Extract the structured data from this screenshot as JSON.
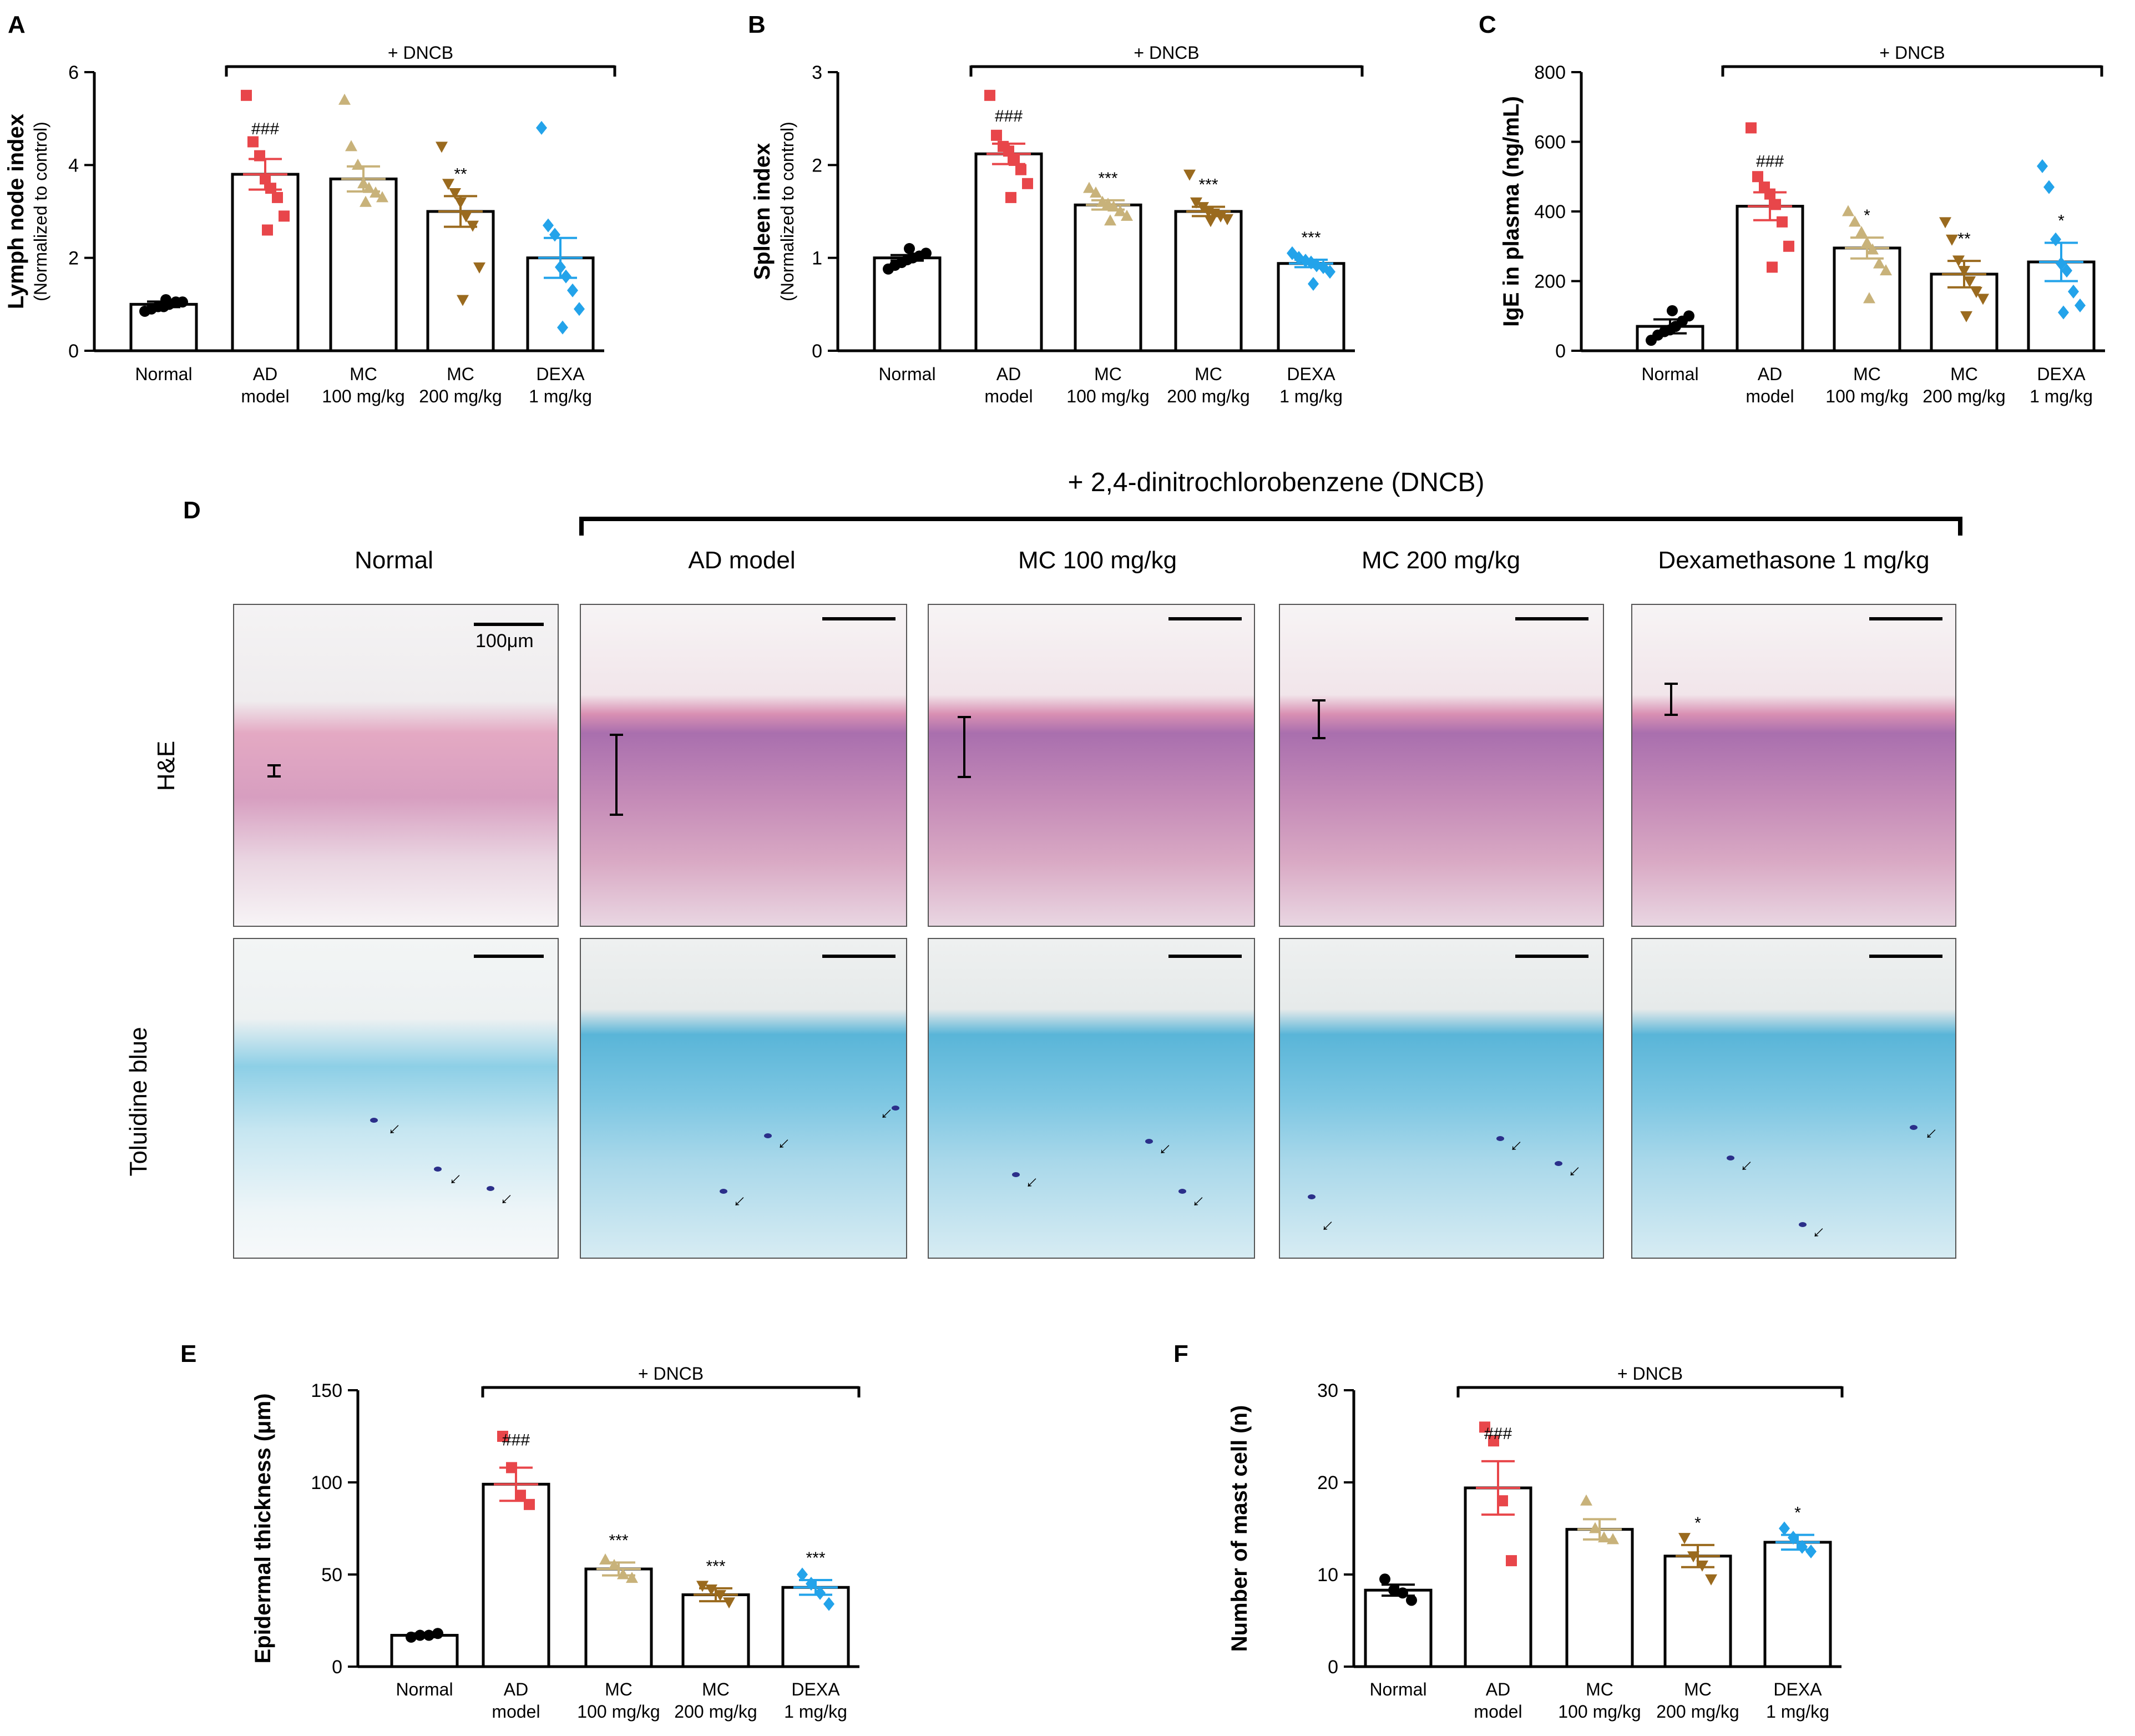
{
  "colors": {
    "normal": "#000000",
    "ad_model": "#e8464a",
    "mc100": "#c8b27a",
    "mc200": "#9a6a1e",
    "dexa": "#23a3ea"
  },
  "shared_categories": [
    "Normal",
    "AD model",
    "MC 100 mg/kg",
    "MC 200 mg/kg",
    "DEXA 1 mg/kg"
  ],
  "chart_data": [
    {
      "panel": "A",
      "type": "bar",
      "title": "",
      "ylabel": "Lymph node index",
      "ylabel_sub": "(Normalized to control)",
      "ylim": [
        0,
        6
      ],
      "yticks": [
        "0",
        "2",
        "4",
        "6"
      ],
      "bracket_label": "+ DNCB",
      "categories": [
        [
          "Normal"
        ],
        [
          "AD",
          "model"
        ],
        [
          "MC",
          "100 mg/kg"
        ],
        [
          "MC",
          "200 mg/kg"
        ],
        [
          "DEXA",
          "1 mg/kg"
        ]
      ],
      "means": [
        1.0,
        3.8,
        3.7,
        3.0,
        2.0
      ],
      "sem": [
        0.06,
        0.33,
        0.27,
        0.33,
        0.43
      ],
      "significance": [
        "",
        "###",
        "",
        "**",
        ""
      ],
      "points": [
        [
          0.85,
          0.9,
          0.95,
          0.95,
          1.0,
          1.05,
          1.05,
          1.1
        ],
        [
          5.5,
          4.5,
          4.2,
          3.7,
          3.5,
          3.3,
          2.9,
          2.6
        ],
        [
          5.4,
          4.4,
          4.0,
          3.6,
          3.5,
          3.4,
          3.3,
          3.2
        ],
        [
          4.4,
          3.6,
          3.4,
          3.2,
          2.9,
          2.7,
          1.8,
          1.1
        ],
        [
          4.8,
          2.7,
          2.5,
          1.8,
          1.6,
          1.3,
          0.9,
          0.5
        ]
      ]
    },
    {
      "panel": "B",
      "type": "bar",
      "title": "",
      "ylabel": "Spleen index",
      "ylabel_sub": "(Normalized to control)",
      "ylim": [
        0,
        3
      ],
      "yticks": [
        "0",
        "1",
        "2",
        "3"
      ],
      "bracket_label": "+ DNCB",
      "categories": [
        [
          "Normal"
        ],
        [
          "AD",
          "model"
        ],
        [
          "MC",
          "100 mg/kg"
        ],
        [
          "MC",
          "200 mg/kg"
        ],
        [
          "DEXA",
          "1 mg/kg"
        ]
      ],
      "means": [
        1.0,
        2.12,
        1.57,
        1.5,
        0.94
      ],
      "sem": [
        0.03,
        0.11,
        0.05,
        0.05,
        0.04
      ],
      "significance": [
        "",
        "###",
        "***",
        "***",
        "***"
      ],
      "points": [
        [
          0.88,
          0.92,
          0.95,
          0.98,
          1.0,
          1.02,
          1.05,
          1.1
        ],
        [
          2.75,
          2.32,
          2.2,
          2.15,
          2.05,
          1.95,
          1.8,
          1.65
        ],
        [
          1.75,
          1.7,
          1.6,
          1.58,
          1.55,
          1.5,
          1.45,
          1.4
        ],
        [
          1.9,
          1.6,
          1.55,
          1.5,
          1.48,
          1.45,
          1.42,
          1.4
        ],
        [
          1.05,
          1.0,
          0.97,
          0.95,
          0.92,
          0.9,
          0.85,
          0.72
        ]
      ]
    },
    {
      "panel": "C",
      "type": "bar",
      "title": "",
      "ylabel": "IgE in plasma (ng/mL)",
      "ylabel_sub": "",
      "ylim": [
        0,
        800
      ],
      "yticks": [
        "0",
        "200",
        "400",
        "600",
        "800"
      ],
      "bracket_label": "+ DNCB",
      "categories": [
        [
          "Normal"
        ],
        [
          "AD",
          "model"
        ],
        [
          "MC",
          "100 mg/kg"
        ],
        [
          "MC",
          "200 mg/kg"
        ],
        [
          "DEXA",
          "1 mg/kg"
        ]
      ],
      "means": [
        70,
        415,
        295,
        220,
        255
      ],
      "sem": [
        20,
        40,
        30,
        38,
        55
      ],
      "significance": [
        "",
        "###",
        "*",
        "**",
        "*"
      ],
      "points": [
        [
          30,
          45,
          55,
          60,
          70,
          85,
          100,
          115
        ],
        [
          640,
          500,
          470,
          450,
          420,
          370,
          300,
          240
        ],
        [
          400,
          370,
          340,
          310,
          290,
          250,
          230,
          150
        ],
        [
          370,
          320,
          260,
          230,
          200,
          170,
          150,
          100
        ],
        [
          530,
          470,
          320,
          250,
          230,
          170,
          130,
          110
        ]
      ]
    },
    {
      "panel": "E",
      "type": "bar",
      "title": "",
      "ylabel": "Epidermal thickness (μm)",
      "ylabel_sub": "",
      "ylim": [
        0,
        150
      ],
      "yticks": [
        "0",
        "50",
        "100",
        "150"
      ],
      "bracket_label": "+ DNCB",
      "categories": [
        [
          "Normal"
        ],
        [
          "AD",
          "model"
        ],
        [
          "MC",
          "100 mg/kg"
        ],
        [
          "MC",
          "200 mg/kg"
        ],
        [
          "DEXA",
          "1 mg/kg"
        ]
      ],
      "means": [
        17,
        99,
        53,
        39,
        43
      ],
      "sem": [
        1,
        9,
        3.5,
        3.5,
        4
      ],
      "significance": [
        "",
        "###",
        "***",
        "***",
        "***"
      ],
      "points": [
        [
          16,
          17,
          17,
          18
        ],
        [
          125,
          108,
          93,
          88
        ],
        [
          58,
          55,
          50,
          48
        ],
        [
          44,
          42,
          39,
          35
        ],
        [
          50,
          45,
          40,
          34
        ]
      ]
    },
    {
      "panel": "F",
      "type": "bar",
      "title": "",
      "ylabel": "Number of mast cell  (n)",
      "ylabel_sub": "",
      "ylim": [
        0,
        30
      ],
      "yticks": [
        "0",
        "10",
        "20",
        "30"
      ],
      "bracket_label": "+ DNCB",
      "categories": [
        [
          "Normal"
        ],
        [
          "AD",
          "model"
        ],
        [
          "MC",
          "100 mg/kg"
        ],
        [
          "MC",
          "200 mg/kg"
        ],
        [
          "DEXA",
          "1 mg/kg"
        ]
      ],
      "means": [
        8.3,
        19.4,
        14.9,
        12.0,
        13.5
      ],
      "sem": [
        0.6,
        2.9,
        1.1,
        1.2,
        0.8
      ],
      "significance": [
        "",
        "###",
        "",
        "*",
        "*"
      ],
      "points": [
        [
          9.5,
          8.3,
          8.0,
          7.2
        ],
        [
          26,
          24.5,
          18,
          11.5
        ],
        [
          18,
          15,
          14,
          13.8
        ],
        [
          14,
          12,
          11,
          9.5
        ],
        [
          15,
          14,
          13,
          12.5
        ]
      ]
    }
  ],
  "histology": {
    "panel_label": "D",
    "bracket_title": "+ 2,4-dinitrochlorobenzene (DNCB)",
    "columns": [
      "Normal",
      "AD model",
      "MC 100 mg/kg",
      "MC 200 mg/kg",
      "Dexamethasone 1 mg/kg"
    ],
    "rows": [
      "H&E",
      "Toluidine blue"
    ],
    "scale_label": "100μm"
  }
}
